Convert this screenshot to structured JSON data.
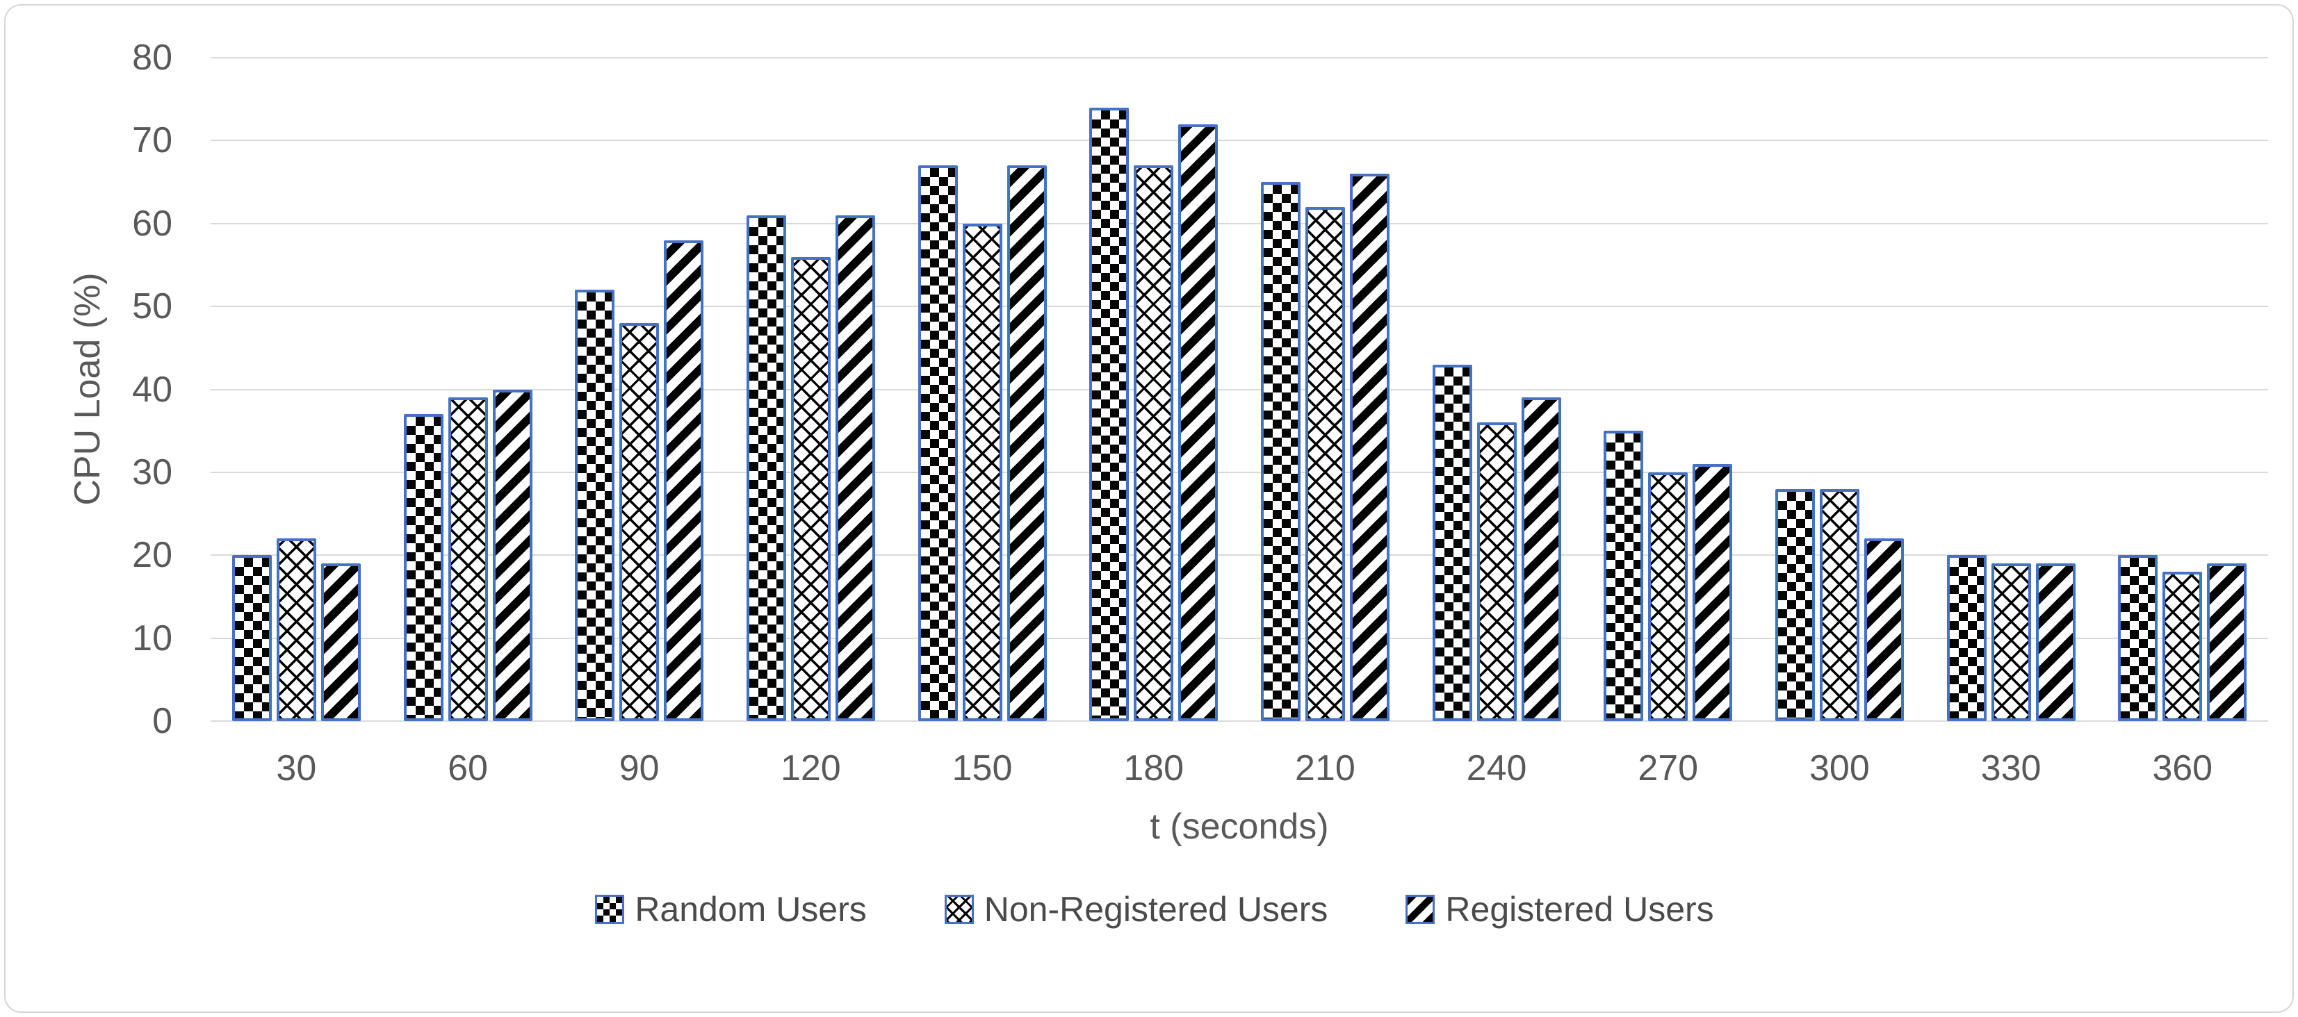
{
  "chart_data": {
    "type": "bar",
    "title": "",
    "xlabel": "t (seconds)",
    "ylabel": "CPU Load (%)",
    "ylim": [
      0,
      80
    ],
    "ytick_step": 10,
    "yticks": [
      "80",
      "70",
      "60",
      "50",
      "40",
      "30",
      "20",
      "10",
      "0"
    ],
    "grid": true,
    "legend_position": "bottom",
    "categories": [
      "30",
      "60",
      "90",
      "120",
      "150",
      "180",
      "210",
      "240",
      "270",
      "300",
      "330",
      "360"
    ],
    "series": [
      {
        "name": "Random Users",
        "pattern": "large-checkerboard",
        "values": [
          20,
          37,
          52,
          61,
          67,
          74,
          65,
          43,
          35,
          28,
          20,
          20
        ]
      },
      {
        "name": "Non-Registered Users",
        "pattern": "diagonal-crosshatch",
        "values": [
          22,
          39,
          48,
          56,
          60,
          67,
          62,
          36,
          30,
          28,
          19,
          18
        ]
      },
      {
        "name": "Registered Users",
        "pattern": "upward-diagonal-stripes",
        "values": [
          19,
          40,
          58,
          61,
          67,
          72,
          66,
          39,
          31,
          22,
          19,
          19
        ]
      }
    ],
    "colors": {
      "bar_border": "#4472C4",
      "pattern_foreground": "#000000",
      "pattern_background": "#FFFFFF",
      "gridline": "#D9D9D9",
      "axis_text": "#595959",
      "legend_text": "#4A4A4A",
      "chart_border": "#D6D6D6"
    }
  }
}
